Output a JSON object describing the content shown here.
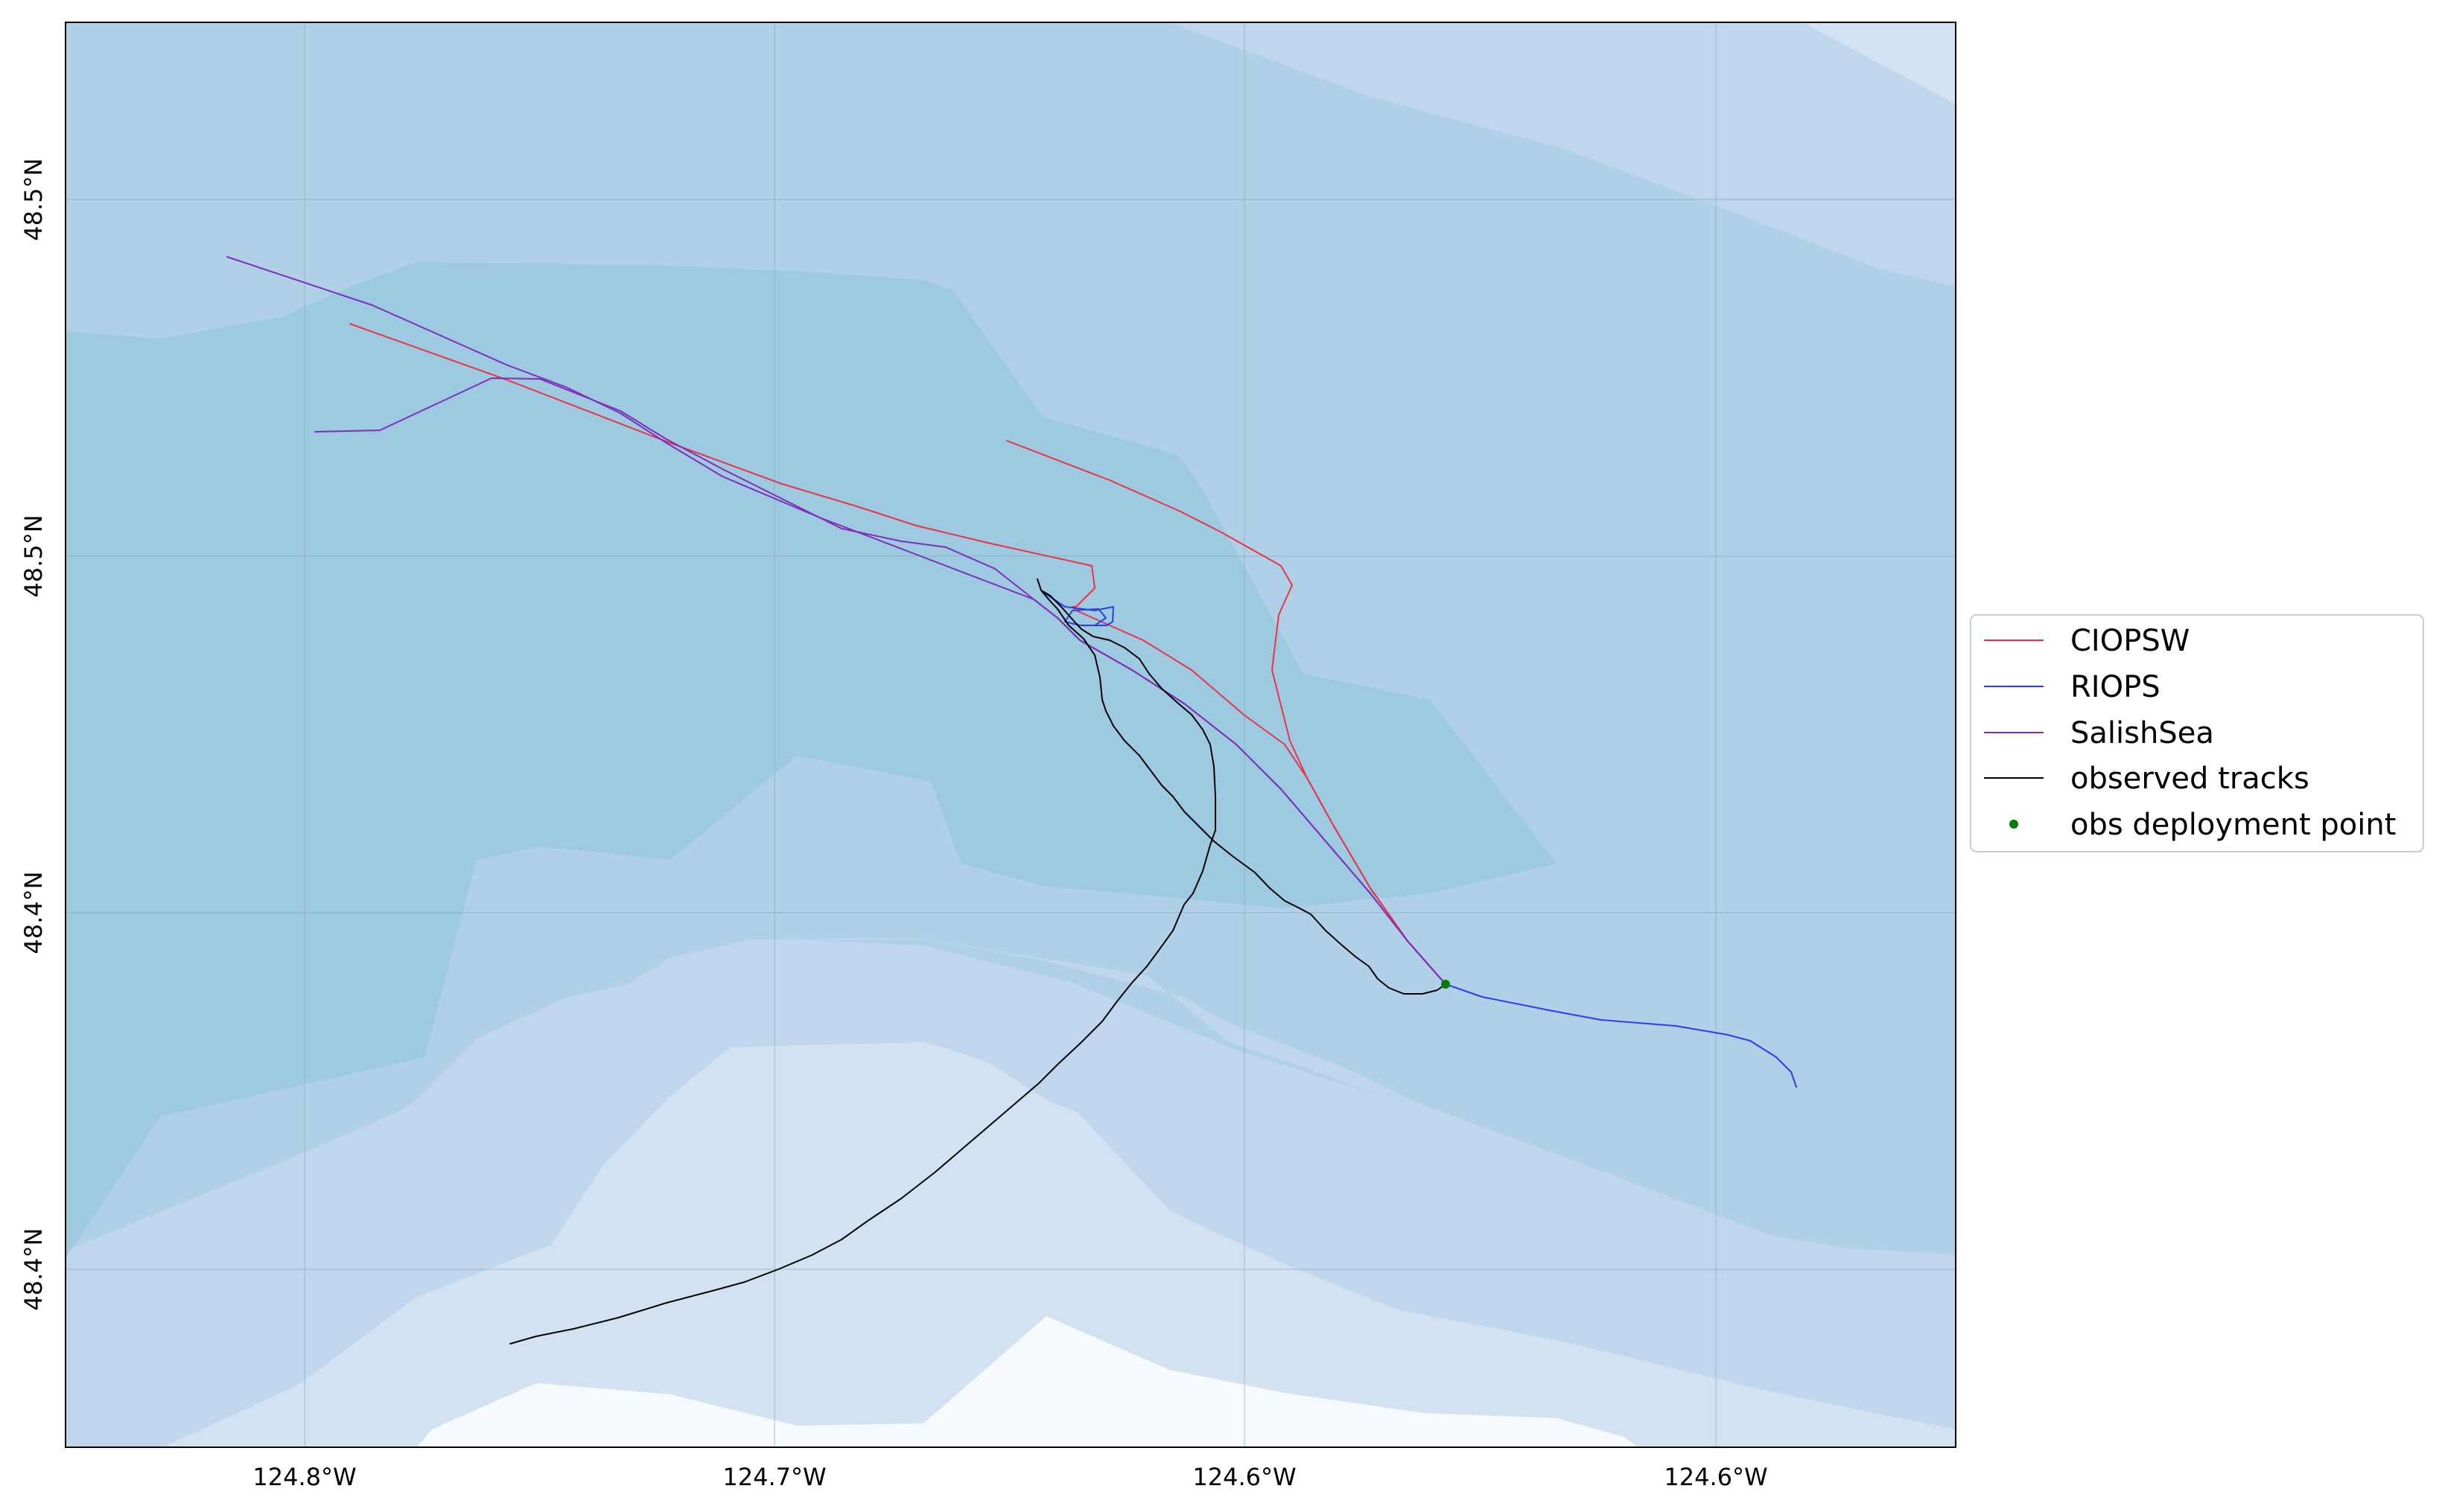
{
  "map": {
    "colors": {
      "band0": "#f7fbff",
      "band1": "#d2e2f2",
      "band2": "#bfd6ec",
      "band3": "#afd0e6",
      "band4": "#9dcae0",
      "grid": "#8ba4b7",
      "frame": "#000000",
      "CIOPSW": "#e8344a",
      "RIOPS": "#2b3df0",
      "SalishSea": "#7e2fb8",
      "observed": "#000000",
      "deployment": "#0b7a0b"
    },
    "x_ticks": [
      "124.8°W",
      "124.7°W",
      "124.6°W",
      "124.6°W"
    ],
    "y_ticks": [
      "48.5°N",
      "48.5°N",
      "48.4°N",
      "48.4°N"
    ],
    "legend": [
      {
        "label": "CIOPSW",
        "kind": "line",
        "color_key": "CIOPSW"
      },
      {
        "label": "RIOPS",
        "kind": "line",
        "color_key": "RIOPS"
      },
      {
        "label": "SalishSea",
        "kind": "line",
        "color_key": "SalishSea"
      },
      {
        "label": "observed tracks",
        "kind": "line",
        "color_key": "observed"
      },
      {
        "label": "obs deployment point",
        "kind": "point",
        "color_key": "deployment"
      }
    ]
  }
}
